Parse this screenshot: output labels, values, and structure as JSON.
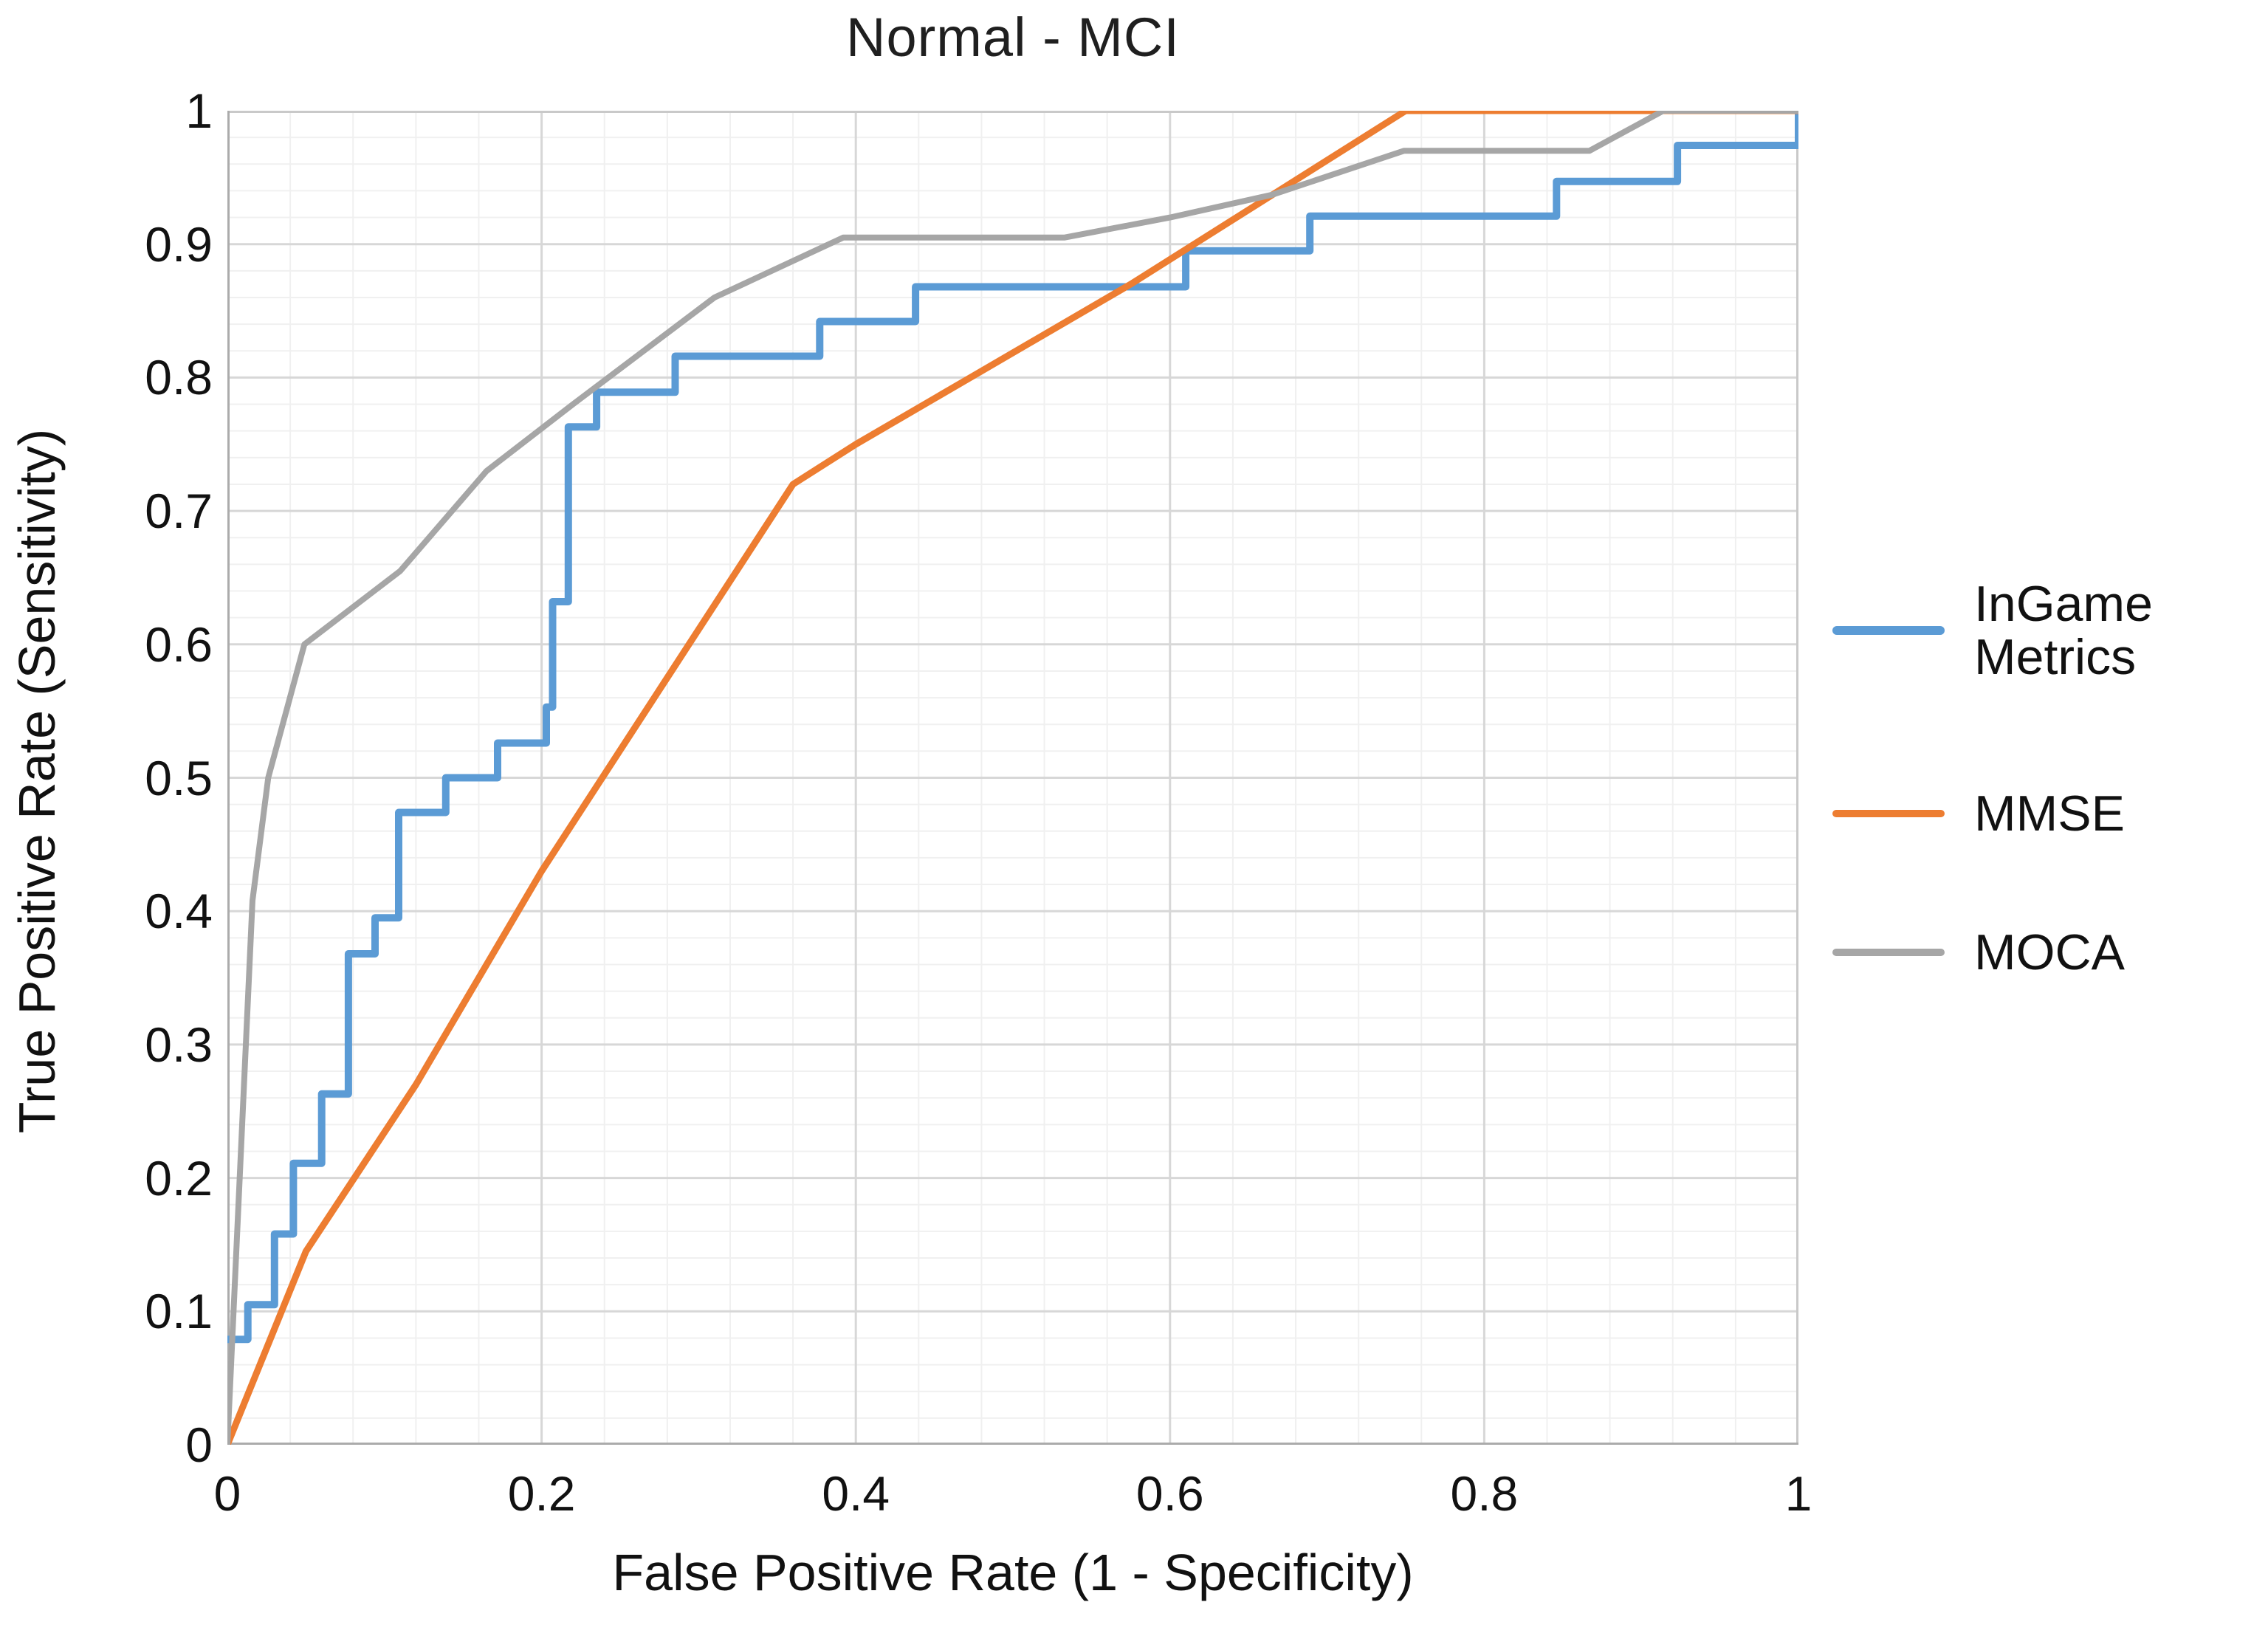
{
  "chart_data": {
    "type": "line",
    "title": "Normal - MCI",
    "xlabel": "False Positive Rate (1 - Specificity)",
    "ylabel": "True Positive Rate (Sensitivity)",
    "xlim": [
      0,
      1
    ],
    "ylim": [
      0,
      1
    ],
    "x_tick_labels": [
      "0",
      "0.2",
      "0.4",
      "0.6",
      "0.8",
      "1"
    ],
    "x_tick_values": [
      0,
      0.2,
      0.4,
      0.6,
      0.8,
      1
    ],
    "y_tick_labels": [
      "0",
      "0.1",
      "0.2",
      "0.3",
      "0.4",
      "0.5",
      "0.6",
      "0.7",
      "0.8",
      "0.9",
      "1"
    ],
    "y_tick_values": [
      0,
      0.1,
      0.2,
      0.3,
      0.4,
      0.5,
      0.6,
      0.7,
      0.8,
      0.9,
      1
    ],
    "grid": {
      "x_major_step": 0.2,
      "x_minor_step": 0.04,
      "y_major_step": 0.1,
      "y_minor_step": 0.02,
      "major_color": "#d7d7d7",
      "minor_color": "#f0f0f0",
      "frame_color": "#c9c9c9"
    },
    "legend_position": "right",
    "series": [
      {
        "name": "InGame Metrics",
        "color": "#5B9BD5",
        "style": "step",
        "stroke_width": 10,
        "points": [
          [
            0.0,
            0.079
          ],
          [
            0.013,
            0.105
          ],
          [
            0.03,
            0.158
          ],
          [
            0.042,
            0.211
          ],
          [
            0.06,
            0.263
          ],
          [
            0.077,
            0.368
          ],
          [
            0.094,
            0.395
          ],
          [
            0.109,
            0.474
          ],
          [
            0.139,
            0.5
          ],
          [
            0.172,
            0.526
          ],
          [
            0.203,
            0.553
          ],
          [
            0.207,
            0.632
          ],
          [
            0.217,
            0.763
          ],
          [
            0.235,
            0.789
          ],
          [
            0.285,
            0.816
          ],
          [
            0.377,
            0.842
          ],
          [
            0.438,
            0.868
          ],
          [
            0.61,
            0.895
          ],
          [
            0.689,
            0.921
          ],
          [
            0.846,
            0.947
          ],
          [
            0.923,
            0.974
          ],
          [
            1.0,
            1.0
          ]
        ]
      },
      {
        "name": "MMSE",
        "color": "#ED7D31",
        "style": "line",
        "stroke_width": 9,
        "points": [
          [
            0.0,
            0.0
          ],
          [
            0.05,
            0.145
          ],
          [
            0.12,
            0.27
          ],
          [
            0.2,
            0.43
          ],
          [
            0.28,
            0.575
          ],
          [
            0.36,
            0.72
          ],
          [
            0.4,
            0.75
          ],
          [
            0.575,
            0.87
          ],
          [
            0.75,
            1.0
          ],
          [
            1.0,
            1.0
          ]
        ]
      },
      {
        "name": "MOCA",
        "color": "#A6A6A6",
        "style": "line",
        "stroke_width": 8,
        "points": [
          [
            0.0,
            0.0
          ],
          [
            0.016,
            0.408
          ],
          [
            0.026,
            0.5
          ],
          [
            0.049,
            0.6
          ],
          [
            0.11,
            0.655
          ],
          [
            0.165,
            0.73
          ],
          [
            0.22,
            0.78
          ],
          [
            0.31,
            0.86
          ],
          [
            0.392,
            0.905
          ],
          [
            0.533,
            0.905
          ],
          [
            0.6,
            0.92
          ],
          [
            0.665,
            0.937
          ],
          [
            0.749,
            0.97
          ],
          [
            0.867,
            0.97
          ],
          [
            0.914,
            1.0
          ],
          [
            1.0,
            1.0
          ]
        ]
      }
    ]
  }
}
